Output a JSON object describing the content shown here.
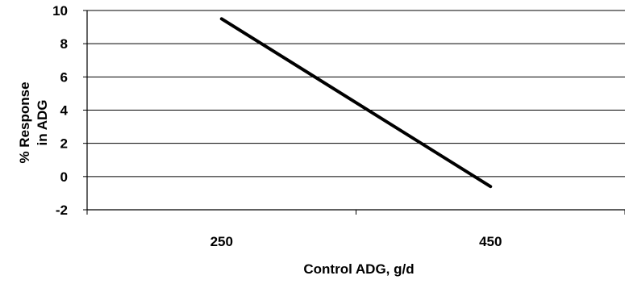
{
  "chart_data": {
    "type": "line",
    "xlabel": "Control ADG, g/d",
    "ylabel_lines": [
      "% Response",
      "in ADG"
    ],
    "x_categories": [
      "250",
      "450"
    ],
    "x_domain": [
      150,
      550
    ],
    "ylim": [
      -2,
      10
    ],
    "yticks": [
      "-2",
      "0",
      "2",
      "4",
      "6",
      "8",
      "10"
    ],
    "grid": "horizontal",
    "legend": "none",
    "series": [
      {
        "color": "#000000",
        "points": [
          {
            "x": 250,
            "y": 9.5
          },
          {
            "x": 450,
            "y": -0.6
          }
        ]
      }
    ]
  }
}
